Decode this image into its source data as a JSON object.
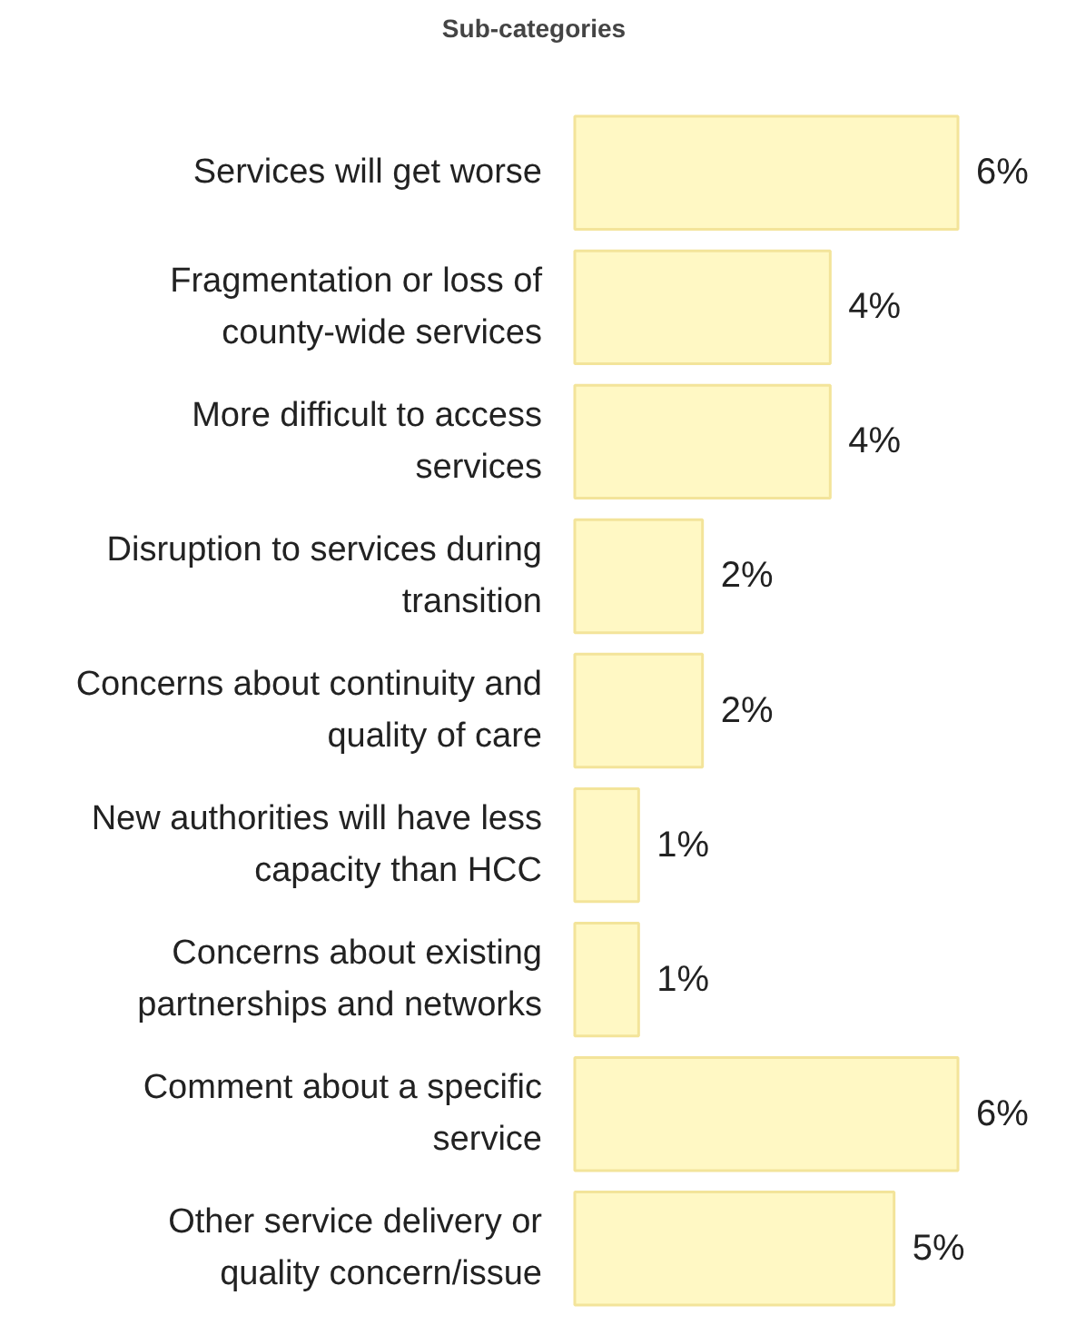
{
  "chart_data": {
    "type": "bar",
    "orientation": "horizontal",
    "title": "Sub-categories",
    "categories": [
      "Services will get worse",
      "Fragmentation or loss of county-wide services",
      "More difficult to access services",
      "Disruption to services during transition",
      "Concerns about continuity and quality of care",
      "New authorities will have less capacity than HCC",
      "Concerns about existing partnerships and networks",
      "Comment about a specific service",
      "Other service delivery or quality concern/issue"
    ],
    "values": [
      6,
      4,
      4,
      2,
      2,
      1,
      1,
      6,
      5
    ],
    "value_labels": [
      "6%",
      "4%",
      "4%",
      "2%",
      "2%",
      "1%",
      "1%",
      "6%",
      "5%"
    ],
    "color": "#fff8c4",
    "grid": false,
    "tick_labels": false
  }
}
